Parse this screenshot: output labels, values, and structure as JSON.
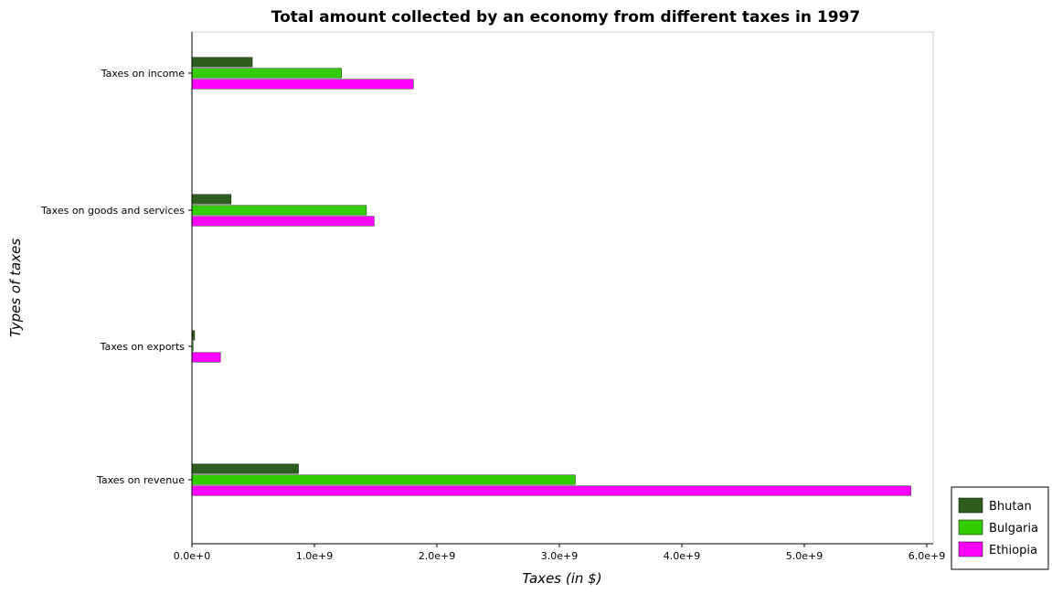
{
  "chart_data": {
    "type": "bar",
    "orientation": "horizontal",
    "title": "Total amount collected by an economy from different taxes in 1997",
    "xlabel": "Taxes (in $)",
    "ylabel": "Types of taxes",
    "categories": [
      "Taxes on revenue",
      "Taxes on exports",
      "Taxes on goods and services",
      "Taxes on income"
    ],
    "xlim": [
      0,
      6000000000
    ],
    "xticks": [
      0,
      1000000000,
      2000000000,
      3000000000,
      4000000000,
      5000000000,
      6000000000
    ],
    "xtick_labels": [
      "0.0e+0",
      "1.0e+9",
      "2.0e+9",
      "3.0e+9",
      "4.0e+9",
      "5.0e+9",
      "6.0e+9"
    ],
    "legend_position": "bottom-right",
    "grid": false,
    "series": [
      {
        "name": "Bhutan",
        "color": "#2e5e1e",
        "values": [
          870000000,
          22000000,
          320000000,
          493000000
        ]
      },
      {
        "name": "Bulgaria",
        "color": "#33cc00",
        "values": [
          3130000000,
          10000000,
          1425000000,
          1222000000
        ]
      },
      {
        "name": "Ethiopia",
        "color": "#ff00ff",
        "values": [
          5870000000,
          233000000,
          1488000000,
          1808000000
        ]
      }
    ]
  }
}
